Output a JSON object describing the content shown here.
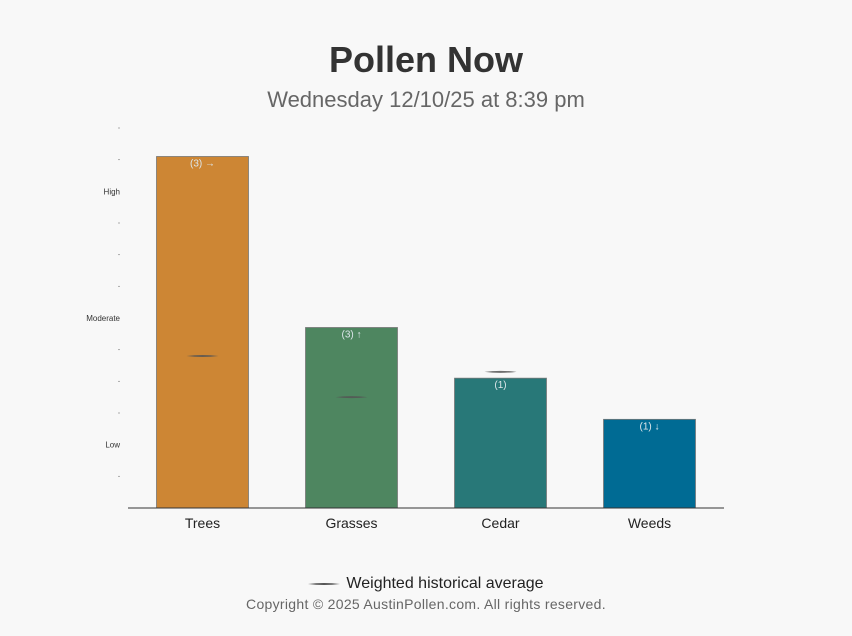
{
  "header": {
    "title": "Pollen Now",
    "subtitle": "Wednesday 12/10/25 at 8:39 pm"
  },
  "legend": {
    "label": "Weighted historical average"
  },
  "footer": {
    "copyright": "Copyright © 2025 AustinPollen.com.  All rights reserved."
  },
  "colors": {
    "trees": "#cd8634",
    "grasses": "#4e8660",
    "cedar": "#287878",
    "weeds": "#006b94",
    "average_marker": "#555555"
  },
  "chart_data": {
    "type": "bar",
    "categories": [
      "Trees",
      "Grasses",
      "Cedar",
      "Weeds"
    ],
    "values": [
      11.1,
      5.7,
      4.1,
      2.8
    ],
    "bar_labels": [
      "(3) →",
      "(3) ↑",
      "(1)",
      "(1) ↓"
    ],
    "series": [
      {
        "name": "Weighted historical average",
        "values": [
          4.8,
          3.5,
          4.3,
          null
        ]
      }
    ],
    "ylim": [
      0,
      12
    ],
    "y_tick_labels": [
      {
        "value": 2,
        "label": "Low"
      },
      {
        "value": 6,
        "label": "Moderate"
      },
      {
        "value": 10,
        "label": "High"
      }
    ],
    "grid": false,
    "legend_position": "bottom"
  }
}
